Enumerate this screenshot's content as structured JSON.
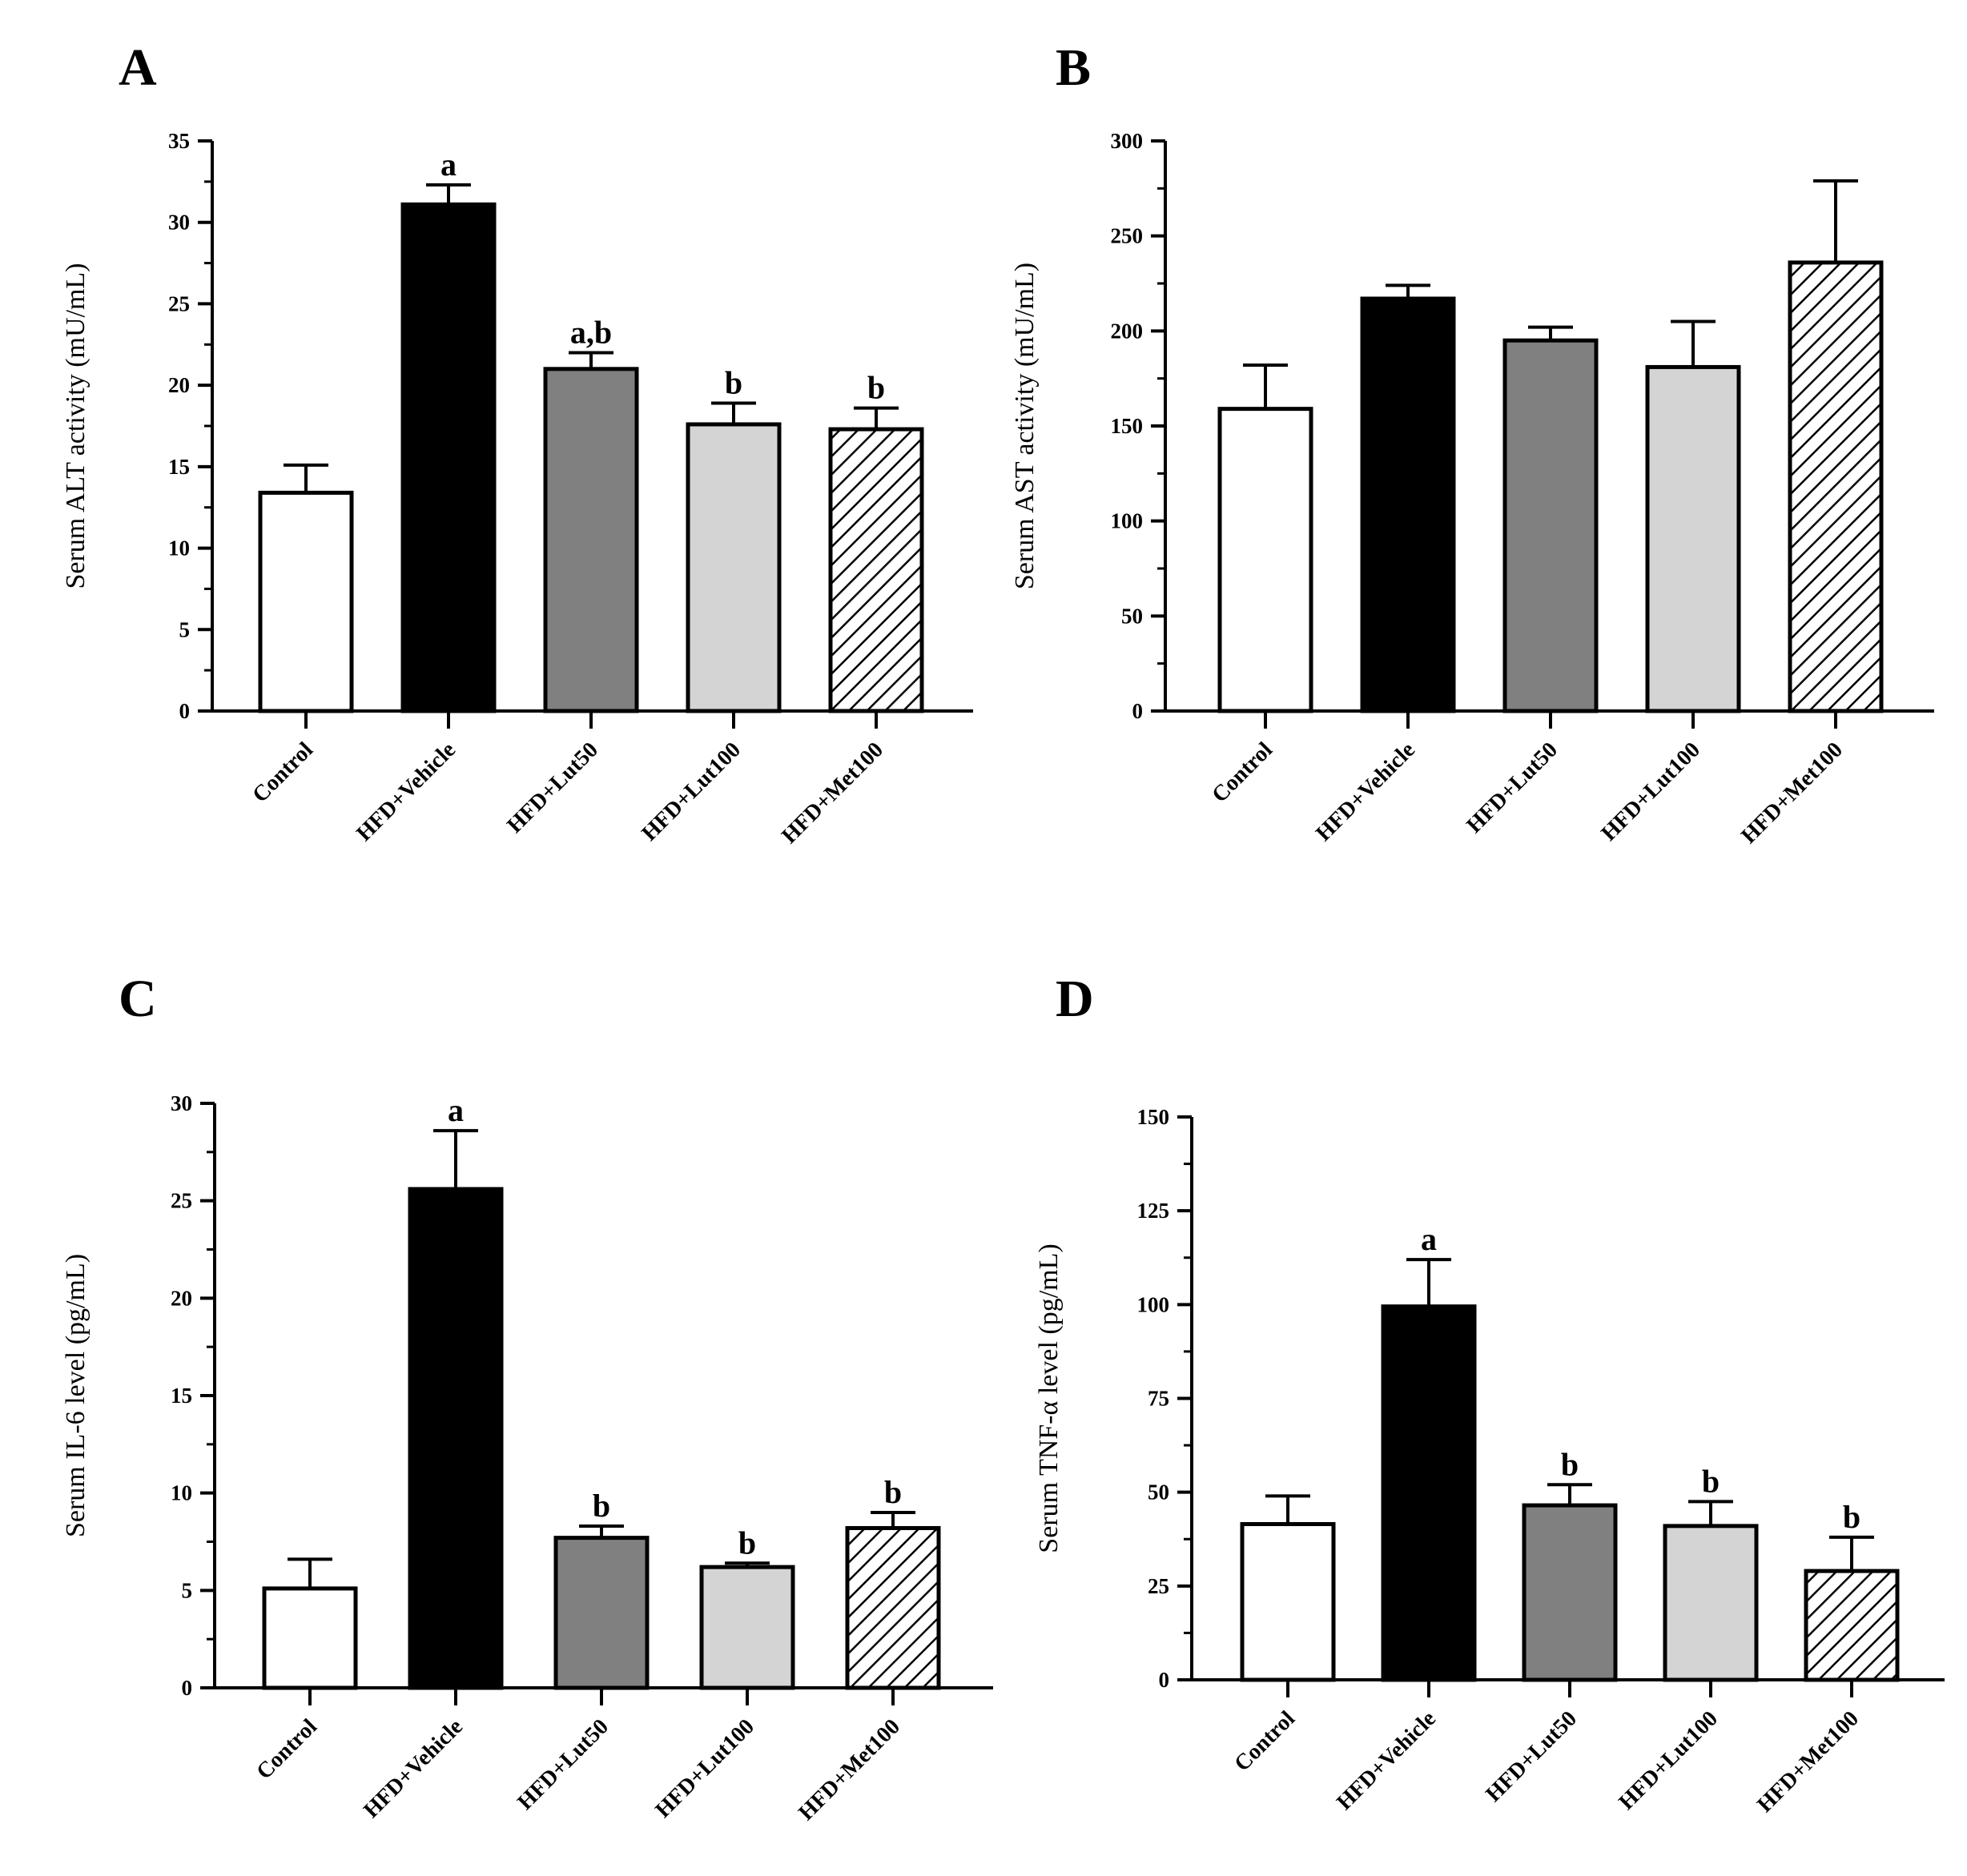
{
  "chart_data": [
    {
      "panel": "A",
      "type": "bar",
      "ylabel": "Serum ALT activity (mU/mL)",
      "ylim": [
        0,
        35
      ],
      "yticks": [
        0,
        5,
        10,
        15,
        20,
        25,
        30,
        35
      ],
      "categories": [
        "Control",
        "HFD+Vehicle",
        "HFD+Lut50",
        "HFD+Lut100",
        "HFD+Met100"
      ],
      "values": [
        13.4,
        31.1,
        21.0,
        17.6,
        17.3
      ],
      "errors": [
        1.7,
        1.2,
        1.0,
        1.3,
        1.3
      ],
      "significance": [
        "",
        "a",
        "a,b",
        "b",
        "b"
      ]
    },
    {
      "panel": "B",
      "type": "bar",
      "ylabel": "Serum AST activity (mU/mL)",
      "ylim": [
        0,
        300
      ],
      "yticks": [
        0,
        50,
        100,
        150,
        200,
        250,
        300
      ],
      "categories": [
        "Control",
        "HFD+Vehicle",
        "HFD+Lut50",
        "HFD+Lut100",
        "HFD+Met100"
      ],
      "values": [
        159,
        217,
        195,
        181,
        236
      ],
      "errors": [
        23,
        7,
        7,
        24,
        43
      ],
      "significance": [
        "",
        "",
        "",
        "",
        ""
      ]
    },
    {
      "panel": "C",
      "type": "bar",
      "ylabel": "Serum IL-6 level (pg/mL)",
      "ylim": [
        0,
        30
      ],
      "yticks": [
        0,
        5,
        10,
        15,
        20,
        25,
        30
      ],
      "categories": [
        "Control",
        "HFD+Vehicle",
        "HFD+Lut50",
        "HFD+Lut100",
        "HFD+Met100"
      ],
      "values": [
        5.1,
        25.6,
        7.7,
        6.2,
        8.2
      ],
      "errors": [
        1.5,
        3.0,
        0.6,
        0.2,
        0.8
      ],
      "significance": [
        "",
        "a",
        "b",
        "b",
        "b"
      ]
    },
    {
      "panel": "D",
      "type": "bar",
      "ylabel": "Serum TNF-α level (pg/mL)",
      "ylim": [
        0,
        150
      ],
      "yticks": [
        0,
        25,
        50,
        75,
        100,
        125,
        150
      ],
      "categories": [
        "Control",
        "HFD+Vehicle",
        "HFD+Lut50",
        "HFD+Lut100",
        "HFD+Met100"
      ],
      "values": [
        41.5,
        99.5,
        46.5,
        41,
        29
      ],
      "errors": [
        7.5,
        12.5,
        5.5,
        6.5,
        9
      ],
      "significance": [
        "",
        "a",
        "b",
        "b",
        "b"
      ]
    }
  ],
  "bar_fills": [
    "#ffffff",
    "#000000",
    "#808080",
    "#d4d4d4",
    "hatch"
  ],
  "axis_color": "#000000"
}
